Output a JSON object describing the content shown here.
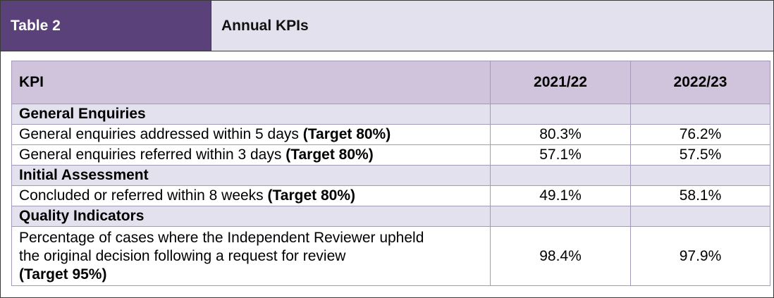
{
  "header": {
    "tag": "Table 2",
    "title": "Annual KPIs"
  },
  "table": {
    "columns": [
      "KPI",
      "2021/22",
      "2022/23"
    ],
    "sections": [
      {
        "title": "General Enquiries",
        "rows": [
          {
            "label": "General enquiries addressed within 5 days",
            "target": "(Target 80%)",
            "v1": "80.3%",
            "v2": "76.2%"
          },
          {
            "label": "General enquiries referred within 3 days",
            "target": "(Target 80%)",
            "v1": "57.1%",
            "v2": "57.5%"
          }
        ]
      },
      {
        "title": "Initial Assessment",
        "rows": [
          {
            "label": "Concluded or referred within 8 weeks",
            "target": "(Target 80%)",
            "v1": "49.1%",
            "v2": "58.1%"
          }
        ]
      },
      {
        "title": "Quality Indicators",
        "rows": [
          {
            "label_line1": "Percentage of cases where the Independent Reviewer upheld",
            "label_line2": "the original decision following a request for review",
            "target": "(Target 95%)",
            "v1": "98.4%",
            "v2": "97.9%"
          }
        ]
      }
    ]
  }
}
